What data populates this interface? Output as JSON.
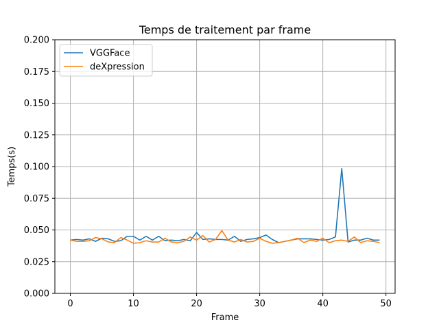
{
  "chart_data": {
    "type": "line",
    "title": "Temps de traitement par frame",
    "xlabel": "Frame",
    "ylabel": "Temps(s)",
    "xlim": [
      -2.45,
      51.45
    ],
    "ylim": [
      0.0,
      0.2
    ],
    "xticks": [
      0,
      10,
      20,
      30,
      40,
      50
    ],
    "xtick_labels": [
      "0",
      "10",
      "20",
      "30",
      "40",
      "50"
    ],
    "yticks": [
      0.0,
      0.025,
      0.05,
      0.075,
      0.1,
      0.125,
      0.15,
      0.175,
      0.2
    ],
    "ytick_labels": [
      "0.000",
      "0.025",
      "0.050",
      "0.075",
      "0.100",
      "0.125",
      "0.150",
      "0.175",
      "0.200"
    ],
    "grid": true,
    "legend_position": "upper-left",
    "x": [
      0,
      1,
      2,
      3,
      4,
      5,
      6,
      7,
      8,
      9,
      10,
      11,
      12,
      13,
      14,
      15,
      16,
      17,
      18,
      19,
      20,
      21,
      22,
      23,
      24,
      25,
      26,
      27,
      28,
      29,
      30,
      31,
      32,
      33,
      34,
      35,
      36,
      37,
      38,
      39,
      40,
      41,
      42,
      43,
      44,
      45,
      46,
      47,
      48,
      49
    ],
    "series": [
      {
        "name": "VGGFace",
        "color": "#1f77b4",
        "values": [
          0.042,
          0.0425,
          0.042,
          0.043,
          0.041,
          0.0435,
          0.043,
          0.041,
          0.0415,
          0.045,
          0.045,
          0.042,
          0.045,
          0.042,
          0.045,
          0.0415,
          0.042,
          0.0415,
          0.0425,
          0.0415,
          0.048,
          0.0425,
          0.043,
          0.0425,
          0.0425,
          0.042,
          0.045,
          0.041,
          0.0425,
          0.043,
          0.044,
          0.046,
          0.0425,
          0.04,
          0.041,
          0.042,
          0.043,
          0.043,
          0.043,
          0.0425,
          0.042,
          0.0425,
          0.0445,
          0.0985,
          0.0405,
          0.042,
          0.042,
          0.0435,
          0.042,
          0.042
        ]
      },
      {
        "name": "deXpression",
        "color": "#ff7f0e",
        "values": [
          0.042,
          0.041,
          0.041,
          0.0415,
          0.044,
          0.043,
          0.0405,
          0.04,
          0.044,
          0.042,
          0.0395,
          0.04,
          0.0415,
          0.0405,
          0.0405,
          0.0435,
          0.0405,
          0.04,
          0.041,
          0.0445,
          0.042,
          0.0455,
          0.0405,
          0.0425,
          0.0495,
          0.042,
          0.0405,
          0.0425,
          0.0405,
          0.041,
          0.0435,
          0.041,
          0.0395,
          0.04,
          0.041,
          0.042,
          0.0435,
          0.04,
          0.042,
          0.041,
          0.0435,
          0.04,
          0.0415,
          0.042,
          0.041,
          0.0445,
          0.04,
          0.0415,
          0.041,
          0.04
        ]
      }
    ]
  }
}
